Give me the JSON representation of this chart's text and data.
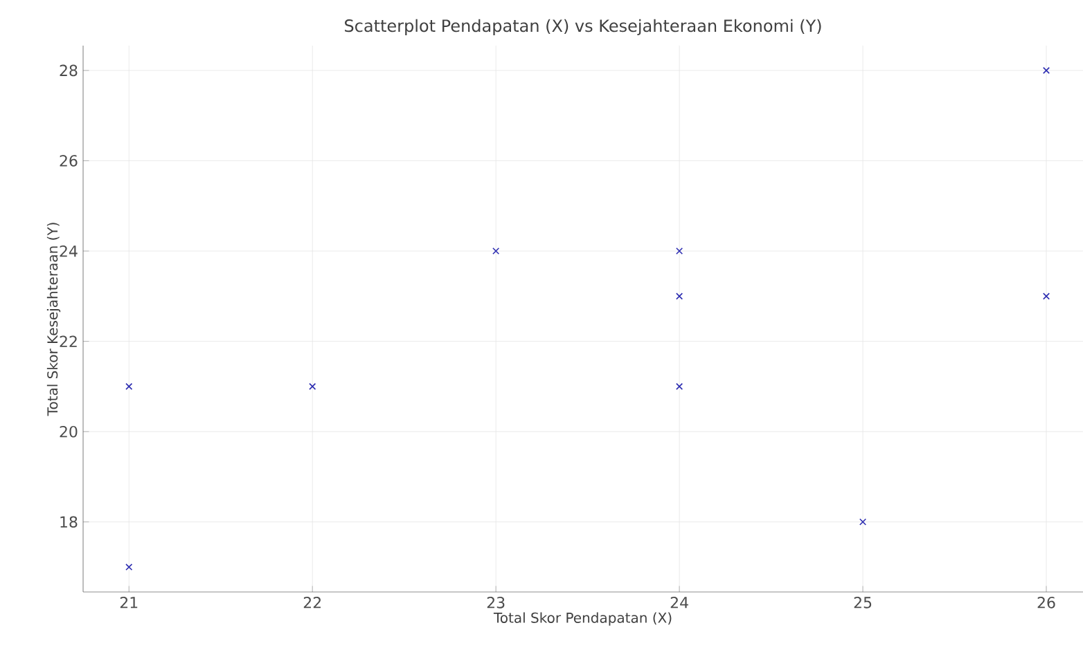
{
  "chart_data": {
    "type": "scatter",
    "title": "Scatterplot Pendapatan (X) vs Kesejahteraan Ekonomi (Y)",
    "xlabel": "Total Skor Pendapatan (X)",
    "ylabel": "Total Skor Kesejahteraan (Y)",
    "x": [
      21,
      21,
      22,
      23,
      24,
      24,
      24,
      25,
      26,
      26
    ],
    "series": [
      {
        "color": "#2b2bb0",
        "values": [
          21,
          17,
          21,
          24,
          24,
          23,
          21,
          18,
          28,
          23
        ]
      }
    ],
    "xlim": [
      20.75,
      26.2
    ],
    "ylim": [
      16.45,
      28.55
    ],
    "xticks": [
      21,
      22,
      23,
      24,
      25,
      26
    ],
    "yticks": [
      18,
      20,
      22,
      24,
      26,
      28
    ],
    "grid": true,
    "marker": "cross"
  }
}
